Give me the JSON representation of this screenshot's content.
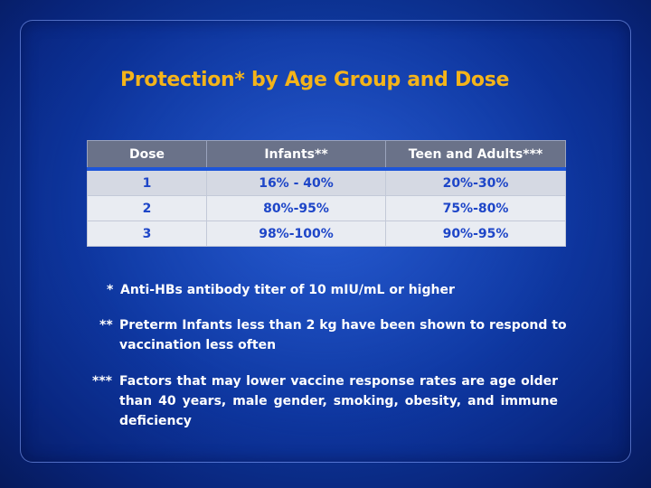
{
  "slide": {
    "title": "Protection* by Age Group and Dose",
    "table": {
      "headers": [
        "Dose",
        "Infants**",
        "Teen and Adults***"
      ],
      "rows": [
        [
          "1",
          "16% - 40%",
          "20%-30%"
        ],
        [
          "2",
          "80%-95%",
          "75%-80%"
        ],
        [
          "3",
          "98%-100%",
          "90%-95%"
        ]
      ]
    },
    "footnotes": [
      {
        "mark": "*",
        "text": "Anti-HBs antibody titer of 10 mIU/mL or higher"
      },
      {
        "mark": "**",
        "text": "Preterm Infants less than 2 kg have been shown to respond to vaccination less often"
      },
      {
        "mark": "***",
        "text": "Factors that may lower vaccine response rates are age older than 40 years, male gender, smoking, obesity, and immune deficiency"
      }
    ]
  },
  "colors": {
    "title": "#f4b41a",
    "header_bg": "#6a7289",
    "header_rule": "#1c55d8",
    "cell_text": "#1e46c8",
    "background": "#0f3aa0"
  }
}
